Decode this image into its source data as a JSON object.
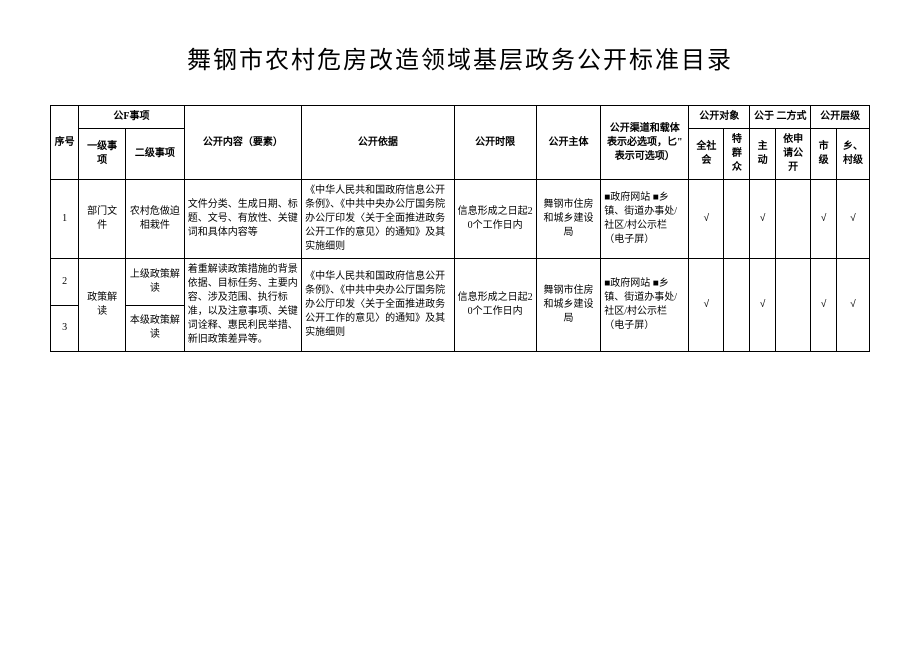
{
  "title": "舞钢市农村危房改造领域基层政务公开标准目录",
  "headers": {
    "seq": "序号",
    "item_group": "公F事项",
    "level1": "一级事项",
    "level2": "二级事项",
    "content": "公开内容（要素）",
    "basis": "公开依据",
    "timelimit": "公开时限",
    "subject": "公开主体",
    "channel": "公开渠道和载体 表示必选项，匕\" 表示可选项）",
    "target_group": "公开对象",
    "target_all": "全社会",
    "target_spec": "特 群众",
    "method_group": "公于 二方式",
    "method_active": "主动",
    "method_apply": "依申请公开",
    "level_group": "公开层级",
    "level_city": "市级",
    "level_village": "乡、村级"
  },
  "rows": [
    {
      "seq": "1",
      "level1": "部门文件",
      "level2": "农村危做迫相栽件",
      "content": "文件分类、生成日期、标题、文号、有放性、关键词和具体内容等",
      "basis": "《中华人民共和国政府信息公开条例》、《中共中央办公厅国务院办公厅印发〈关于全面推进政务公开工作的意见〉的通知》及其实施细则",
      "timelimit": "信息形成之日起20个工作日内",
      "subject": "舞钢市住房和城乡建设局",
      "channel": "■政府网站 ■乡镇、街道办事处/社区/村公示栏（电子屏）",
      "c1": "√",
      "c2": "",
      "c3": "√",
      "c4": "",
      "c5": "√",
      "c6": "√"
    },
    {
      "seq": "2",
      "level1": "政策解读",
      "level2": "上级政策解读",
      "content": "着重解读政策措施的背景依据、目标任务、主要内容、涉及范围、执行标准，以及注意事项、关键词诠释、惠民利民举措、新旧政策差异等。",
      "basis": "《中华人民共和国政府信息公开条例》、《中共中央办公厅国务院办公厅印发〈关于全面推进政务公开工作的意见〉的通知》及其实施细则",
      "timelimit": "信息形成之日起20个工作日内",
      "subject": "舞钢市住房和城乡建设局",
      "channel": "■政府网站 ■乡镇、街道办事处/社区/村公示栏（电子屏）",
      "c1": "√",
      "c2": "",
      "c3": "√",
      "c4": "",
      "c5": "√",
      "c6": "√"
    },
    {
      "seq": "3",
      "level2": "本级政策解读"
    }
  ]
}
